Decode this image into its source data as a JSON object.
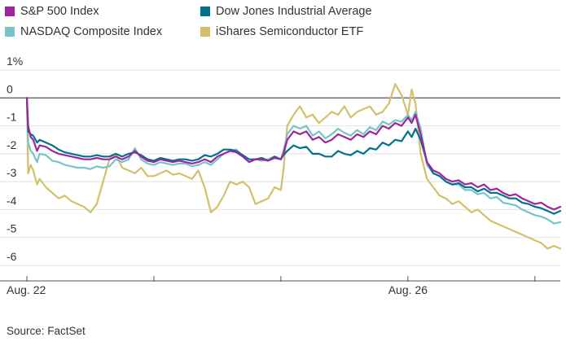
{
  "chart_data": {
    "type": "line",
    "title": "",
    "xlabel": "",
    "ylabel": "",
    "ylim": [
      -6,
      1
    ],
    "y_ticks": [
      {
        "value": 1,
        "label": "1%"
      },
      {
        "value": 0,
        "label": "0"
      },
      {
        "value": -1,
        "label": "-1"
      },
      {
        "value": -2,
        "label": "-2"
      },
      {
        "value": -3,
        "label": "-3"
      },
      {
        "value": -4,
        "label": "-4"
      },
      {
        "value": -5,
        "label": "-5"
      },
      {
        "value": -6,
        "label": "-6"
      }
    ],
    "x_labels": [
      {
        "x": 0,
        "label": "Aug. 22"
      },
      {
        "x": 3,
        "label": "Aug. 26"
      }
    ],
    "x_ticks": [
      0,
      1,
      2,
      3,
      4
    ],
    "grid": true,
    "legend_position": "top",
    "series": [
      {
        "name": "S&P 500 Index",
        "color": "#a0249d",
        "x": [
          0,
          0.01,
          0.03,
          0.05,
          0.08,
          0.1,
          0.15,
          0.2,
          0.25,
          0.3,
          0.35,
          0.4,
          0.45,
          0.5,
          0.55,
          0.6,
          0.65,
          0.7,
          0.75,
          0.8,
          0.85,
          0.9,
          0.95,
          1.0,
          1.05,
          1.1,
          1.15,
          1.2,
          1.25,
          1.3,
          1.35,
          1.4,
          1.45,
          1.5,
          1.55,
          1.6,
          1.65,
          1.7,
          1.75,
          1.8,
          1.85,
          1.9,
          1.95,
          2.0,
          2.02,
          2.05,
          2.1,
          2.15,
          2.2,
          2.25,
          2.3,
          2.35,
          2.4,
          2.45,
          2.5,
          2.55,
          2.6,
          2.65,
          2.7,
          2.75,
          2.8,
          2.85,
          2.9,
          2.95,
          3.0,
          3.03,
          3.06,
          3.1,
          3.15,
          3.2,
          3.25,
          3.3,
          3.35,
          3.4,
          3.45,
          3.5,
          3.55,
          3.6,
          3.65,
          3.7,
          3.75,
          3.8,
          3.85,
          3.9,
          3.95,
          4.0,
          4.05,
          4.1,
          4.15,
          4.2
        ],
        "values": [
          0,
          -1.0,
          -1.4,
          -1.5,
          -1.9,
          -1.7,
          -1.75,
          -1.9,
          -2.0,
          -2.05,
          -2.1,
          -2.15,
          -2.2,
          -2.2,
          -2.15,
          -2.2,
          -2.2,
          -2.1,
          -2.2,
          -2.1,
          -1.9,
          -2.1,
          -2.25,
          -2.3,
          -2.2,
          -2.25,
          -2.3,
          -2.25,
          -2.3,
          -2.35,
          -2.3,
          -2.2,
          -2.3,
          -2.1,
          -2.0,
          -1.9,
          -1.95,
          -2.1,
          -2.3,
          -2.2,
          -2.2,
          -2.25,
          -2.15,
          -2.2,
          -2.0,
          -1.5,
          -1.2,
          -1.3,
          -1.2,
          -1.5,
          -1.4,
          -1.6,
          -1.5,
          -1.3,
          -1.4,
          -1.5,
          -1.3,
          -1.4,
          -1.2,
          -1.3,
          -1.0,
          -1.1,
          -0.9,
          -1.0,
          -0.7,
          -0.9,
          -0.6,
          -1.3,
          -2.3,
          -2.6,
          -2.7,
          -2.9,
          -3.0,
          -2.95,
          -3.1,
          -3.05,
          -3.2,
          -3.1,
          -3.3,
          -3.25,
          -3.4,
          -3.5,
          -3.45,
          -3.6,
          -3.7,
          -3.8,
          -3.75,
          -3.9,
          -4.0,
          -3.9
        ]
      },
      {
        "name": "Dow Jones Industrial Average",
        "color": "#00718f",
        "x": [
          0,
          0.01,
          0.03,
          0.05,
          0.08,
          0.1,
          0.15,
          0.2,
          0.25,
          0.3,
          0.35,
          0.4,
          0.45,
          0.5,
          0.55,
          0.6,
          0.65,
          0.7,
          0.75,
          0.8,
          0.85,
          0.9,
          0.95,
          1.0,
          1.05,
          1.1,
          1.15,
          1.2,
          1.25,
          1.3,
          1.35,
          1.4,
          1.45,
          1.5,
          1.55,
          1.6,
          1.65,
          1.7,
          1.75,
          1.8,
          1.85,
          1.9,
          1.95,
          2.0,
          2.02,
          2.05,
          2.1,
          2.15,
          2.2,
          2.25,
          2.3,
          2.35,
          2.4,
          2.45,
          2.5,
          2.55,
          2.6,
          2.65,
          2.7,
          2.75,
          2.8,
          2.85,
          2.9,
          2.95,
          3.0,
          3.03,
          3.06,
          3.1,
          3.15,
          3.2,
          3.25,
          3.3,
          3.35,
          3.4,
          3.45,
          3.5,
          3.55,
          3.6,
          3.65,
          3.7,
          3.75,
          3.8,
          3.85,
          3.9,
          3.95,
          4.0,
          4.05,
          4.1,
          4.15,
          4.2
        ],
        "values": [
          0,
          -1.2,
          -1.3,
          -1.35,
          -1.6,
          -1.5,
          -1.6,
          -1.7,
          -1.85,
          -1.95,
          -2.0,
          -2.05,
          -2.1,
          -2.1,
          -2.05,
          -2.1,
          -2.1,
          -2.0,
          -2.1,
          -2.0,
          -1.95,
          -2.05,
          -2.2,
          -2.25,
          -2.15,
          -2.2,
          -2.25,
          -2.2,
          -2.2,
          -2.25,
          -2.2,
          -2.05,
          -2.1,
          -2.0,
          -1.85,
          -1.85,
          -1.9,
          -2.05,
          -2.2,
          -2.2,
          -2.15,
          -2.25,
          -2.1,
          -2.2,
          -2.05,
          -1.9,
          -1.7,
          -1.8,
          -1.75,
          -2.0,
          -2.0,
          -2.1,
          -2.1,
          -1.9,
          -2.0,
          -2.05,
          -1.9,
          -2.0,
          -1.8,
          -1.85,
          -1.6,
          -1.7,
          -1.5,
          -1.55,
          -1.2,
          -1.4,
          -1.1,
          -1.5,
          -2.3,
          -2.7,
          -2.8,
          -3.0,
          -3.1,
          -3.05,
          -3.2,
          -3.2,
          -3.35,
          -3.25,
          -3.4,
          -3.4,
          -3.5,
          -3.6,
          -3.6,
          -3.75,
          -3.8,
          -3.9,
          -3.95,
          -4.05,
          -4.15,
          -4.05
        ]
      },
      {
        "name": "NASDAQ Composite Index",
        "color": "#76c5c6",
        "x": [
          0,
          0.01,
          0.03,
          0.05,
          0.08,
          0.1,
          0.15,
          0.2,
          0.25,
          0.3,
          0.35,
          0.4,
          0.45,
          0.5,
          0.55,
          0.6,
          0.65,
          0.7,
          0.75,
          0.8,
          0.85,
          0.9,
          0.95,
          1.0,
          1.05,
          1.1,
          1.15,
          1.2,
          1.25,
          1.3,
          1.35,
          1.4,
          1.45,
          1.5,
          1.55,
          1.6,
          1.65,
          1.7,
          1.75,
          1.8,
          1.85,
          1.9,
          1.95,
          2.0,
          2.02,
          2.05,
          2.1,
          2.15,
          2.2,
          2.25,
          2.3,
          2.35,
          2.4,
          2.45,
          2.5,
          2.55,
          2.6,
          2.65,
          2.7,
          2.75,
          2.8,
          2.85,
          2.9,
          2.95,
          3.0,
          3.03,
          3.06,
          3.1,
          3.15,
          3.2,
          3.25,
          3.3,
          3.35,
          3.4,
          3.45,
          3.5,
          3.55,
          3.6,
          3.65,
          3.7,
          3.75,
          3.8,
          3.85,
          3.9,
          3.95,
          4.0,
          4.05,
          4.1,
          4.15,
          4.2
        ],
        "values": [
          0,
          -1.6,
          -1.9,
          -2.0,
          -2.3,
          -2.0,
          -2.05,
          -2.25,
          -2.3,
          -2.4,
          -2.45,
          -2.5,
          -2.5,
          -2.55,
          -2.45,
          -2.5,
          -2.45,
          -2.2,
          -2.3,
          -2.2,
          -1.8,
          -2.2,
          -2.35,
          -2.4,
          -2.3,
          -2.35,
          -2.4,
          -2.35,
          -2.35,
          -2.45,
          -2.4,
          -2.3,
          -2.4,
          -2.2,
          -2.0,
          -1.9,
          -1.85,
          -2.1,
          -2.3,
          -2.2,
          -2.25,
          -2.2,
          -2.1,
          -2.2,
          -1.9,
          -1.3,
          -1.0,
          -1.1,
          -1.0,
          -1.35,
          -1.2,
          -1.45,
          -1.3,
          -1.1,
          -1.25,
          -1.35,
          -1.15,
          -1.3,
          -1.05,
          -1.15,
          -0.85,
          -0.95,
          -0.8,
          -0.85,
          -0.6,
          -0.8,
          -0.5,
          -1.1,
          -2.4,
          -2.7,
          -2.8,
          -3.0,
          -3.1,
          -3.1,
          -3.3,
          -3.3,
          -3.45,
          -3.4,
          -3.6,
          -3.55,
          -3.75,
          -3.8,
          -3.85,
          -4.0,
          -4.1,
          -4.2,
          -4.25,
          -4.35,
          -4.5,
          -4.45
        ]
      },
      {
        "name": "iShares Semiconductor ETF",
        "color": "#d3c16a",
        "x": [
          0,
          0.01,
          0.03,
          0.05,
          0.08,
          0.1,
          0.15,
          0.2,
          0.25,
          0.3,
          0.35,
          0.4,
          0.45,
          0.5,
          0.55,
          0.6,
          0.65,
          0.7,
          0.75,
          0.8,
          0.85,
          0.9,
          0.95,
          1.0,
          1.05,
          1.1,
          1.15,
          1.2,
          1.25,
          1.3,
          1.35,
          1.4,
          1.45,
          1.5,
          1.55,
          1.6,
          1.65,
          1.7,
          1.75,
          1.8,
          1.85,
          1.9,
          1.95,
          2.0,
          2.02,
          2.05,
          2.1,
          2.15,
          2.2,
          2.25,
          2.3,
          2.35,
          2.4,
          2.45,
          2.5,
          2.55,
          2.6,
          2.65,
          2.7,
          2.75,
          2.8,
          2.85,
          2.9,
          2.95,
          3.0,
          3.03,
          3.06,
          3.1,
          3.15,
          3.2,
          3.25,
          3.3,
          3.35,
          3.4,
          3.45,
          3.5,
          3.55,
          3.6,
          3.65,
          3.7,
          3.75,
          3.8,
          3.85,
          3.9,
          3.95,
          4.0,
          4.05,
          4.1,
          4.15,
          4.2
        ],
        "values": [
          0,
          -2.7,
          -2.4,
          -2.6,
          -3.1,
          -2.9,
          -3.2,
          -3.4,
          -3.6,
          -3.5,
          -3.7,
          -3.8,
          -3.9,
          -4.1,
          -3.8,
          -3.0,
          -2.2,
          -2.0,
          -2.5,
          -2.6,
          -2.7,
          -2.5,
          -2.8,
          -2.8,
          -2.7,
          -2.6,
          -2.75,
          -2.7,
          -2.8,
          -2.9,
          -2.6,
          -3.2,
          -4.1,
          -3.9,
          -3.5,
          -3.0,
          -3.1,
          -3.0,
          -3.2,
          -3.8,
          -3.7,
          -3.6,
          -3.2,
          -3.3,
          -2.6,
          -1.0,
          -0.6,
          -0.3,
          -0.7,
          -0.6,
          -0.9,
          -0.7,
          -0.5,
          -0.6,
          -0.3,
          -0.7,
          -0.5,
          -0.4,
          -0.3,
          -0.6,
          -0.5,
          -0.2,
          0.5,
          0.1,
          -0.6,
          0.3,
          -0.2,
          -2.0,
          -2.9,
          -3.2,
          -3.5,
          -3.6,
          -3.8,
          -3.7,
          -3.9,
          -4.1,
          -4.0,
          -4.2,
          -4.4,
          -4.5,
          -4.6,
          -4.7,
          -4.8,
          -4.9,
          -5.0,
          -5.1,
          -5.2,
          -5.4,
          -5.3,
          -5.4
        ]
      }
    ]
  },
  "source": "Source: FactSet"
}
